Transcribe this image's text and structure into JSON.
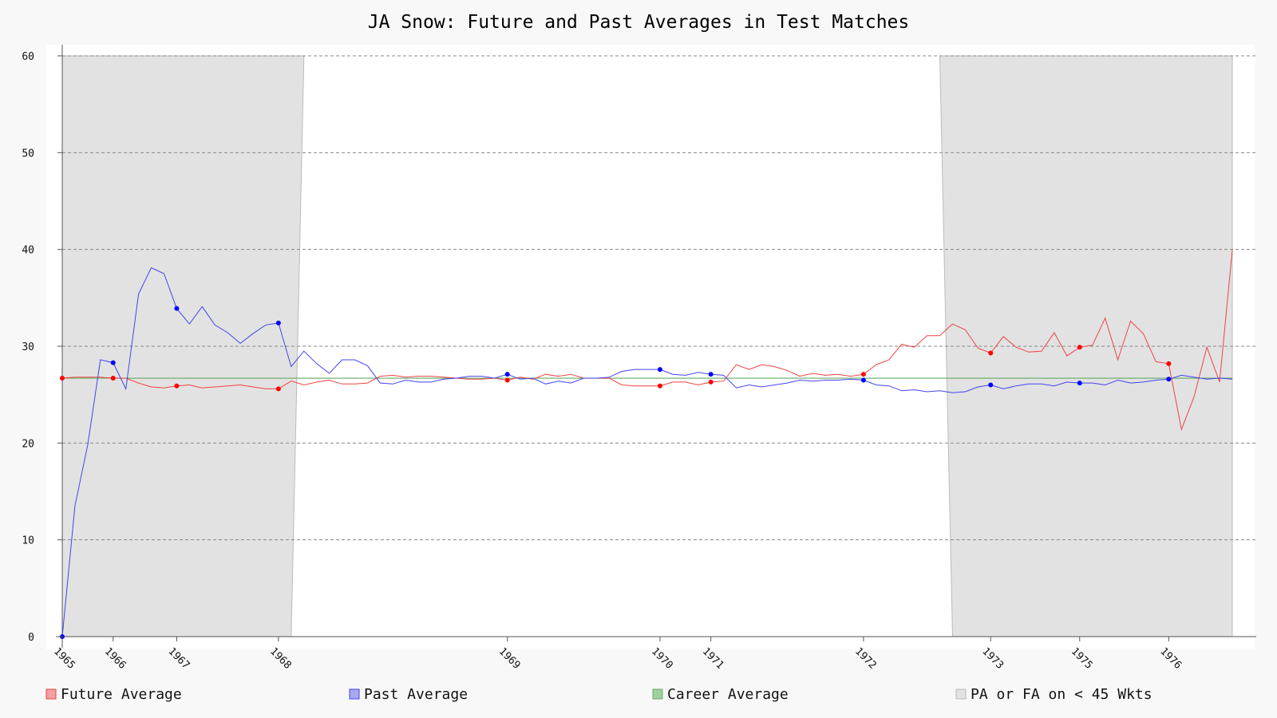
{
  "chart_data": {
    "type": "line",
    "title": "JA Snow: Future and Past Averages in Test Matches",
    "xlabel": "",
    "ylabel": "",
    "ylim": [
      0,
      60
    ],
    "yticks": [
      0,
      10,
      20,
      30,
      40,
      50,
      60
    ],
    "grid": true,
    "legend_position": "bottom",
    "x_tick_labels": [
      {
        "label": "1965",
        "innings": 0
      },
      {
        "label": "1966",
        "innings": 4
      },
      {
        "label": "1967",
        "innings": 9
      },
      {
        "label": "1968",
        "innings": 17
      },
      {
        "label": "1969",
        "innings": 35
      },
      {
        "label": "1970",
        "innings": 47
      },
      {
        "label": "1971",
        "innings": 51
      },
      {
        "label": "1972",
        "innings": 63
      },
      {
        "label": "1973",
        "innings": 73
      },
      {
        "label": "1975",
        "innings": 80
      },
      {
        "label": "1976",
        "innings": 87
      }
    ],
    "shaded_regions": [
      {
        "name": "PA or FA on < 45 Wkts",
        "from_innings": 0,
        "to_innings": 18
      },
      {
        "name": "PA or FA on < 45 Wkts",
        "from_innings": 69,
        "to_innings": 92
      }
    ],
    "series": [
      {
        "name": "Future Average",
        "color": "#ee4444",
        "values": [
          26.7,
          26.8,
          26.8,
          26.8,
          26.7,
          26.7,
          26.2,
          25.8,
          25.7,
          25.9,
          26.0,
          25.7,
          25.8,
          25.9,
          26.0,
          25.8,
          25.6,
          25.6,
          26.4,
          26.0,
          26.3,
          26.5,
          26.1,
          26.1,
          26.2,
          26.9,
          27.0,
          26.8,
          26.9,
          26.9,
          26.8,
          26.7,
          26.6,
          26.6,
          26.7,
          26.5,
          26.8,
          26.6,
          27.1,
          26.9,
          27.1,
          26.7,
          26.7,
          26.7,
          26.0,
          25.9,
          25.9,
          25.9,
          26.3,
          26.3,
          26.0,
          26.3,
          26.4,
          28.1,
          27.6,
          28.1,
          27.9,
          27.5,
          26.9,
          27.2,
          27.0,
          27.1,
          26.9,
          27.1,
          28.1,
          28.6,
          30.2,
          29.9,
          31.1,
          31.1,
          32.3,
          31.7,
          29.8,
          29.3,
          31.0,
          29.9,
          29.4,
          29.5,
          31.4,
          29.0,
          29.9,
          30.1,
          32.9,
          28.6,
          32.6,
          31.3,
          28.4,
          28.2,
          21.4,
          24.8,
          29.9,
          26.3,
          40.0
        ],
        "markers": [
          0,
          4,
          9,
          17,
          35,
          47,
          51,
          63,
          73,
          80,
          87
        ]
      },
      {
        "name": "Past Average",
        "color": "#4444ee",
        "values": [
          0.0,
          13.5,
          19.8,
          28.6,
          28.3,
          25.6,
          35.4,
          38.1,
          37.5,
          33.9,
          32.3,
          34.1,
          32.2,
          31.4,
          30.3,
          31.3,
          32.2,
          32.4,
          27.9,
          29.5,
          28.2,
          27.2,
          28.6,
          28.6,
          28.0,
          26.2,
          26.1,
          26.5,
          26.3,
          26.3,
          26.6,
          26.7,
          26.9,
          26.9,
          26.7,
          27.1,
          26.6,
          26.7,
          26.1,
          26.4,
          26.2,
          26.7,
          26.7,
          26.8,
          27.4,
          27.6,
          27.6,
          27.6,
          27.1,
          27.0,
          27.3,
          27.1,
          27.0,
          25.7,
          26.0,
          25.8,
          26.0,
          26.2,
          26.5,
          26.4,
          26.5,
          26.5,
          26.6,
          26.5,
          26.0,
          25.9,
          25.4,
          25.5,
          25.3,
          25.4,
          25.2,
          25.3,
          25.8,
          26.0,
          25.6,
          25.9,
          26.1,
          26.1,
          25.9,
          26.3,
          26.2,
          26.2,
          26.0,
          26.5,
          26.2,
          26.3,
          26.5,
          26.6,
          27.0,
          26.8,
          26.6,
          26.7,
          26.6
        ],
        "markers": [
          0,
          4,
          9,
          17,
          35,
          47,
          51,
          63,
          73,
          80,
          87
        ]
      },
      {
        "name": "Career Average",
        "color": "#66aa66",
        "values": [
          26.7,
          26.7
        ]
      }
    ],
    "legend": [
      {
        "label": "Future Average",
        "swatch": "#f4a0a0",
        "border": "#ee4444"
      },
      {
        "label": "Past Average",
        "swatch": "#a8a8f0",
        "border": "#4444ee"
      },
      {
        "label": "Career Average",
        "swatch": "#a0d0a0",
        "border": "#66aa66"
      },
      {
        "label": "PA or FA on < 45 Wkts",
        "swatch": "#e2e2e2",
        "border": "#bbbbbb"
      }
    ]
  }
}
